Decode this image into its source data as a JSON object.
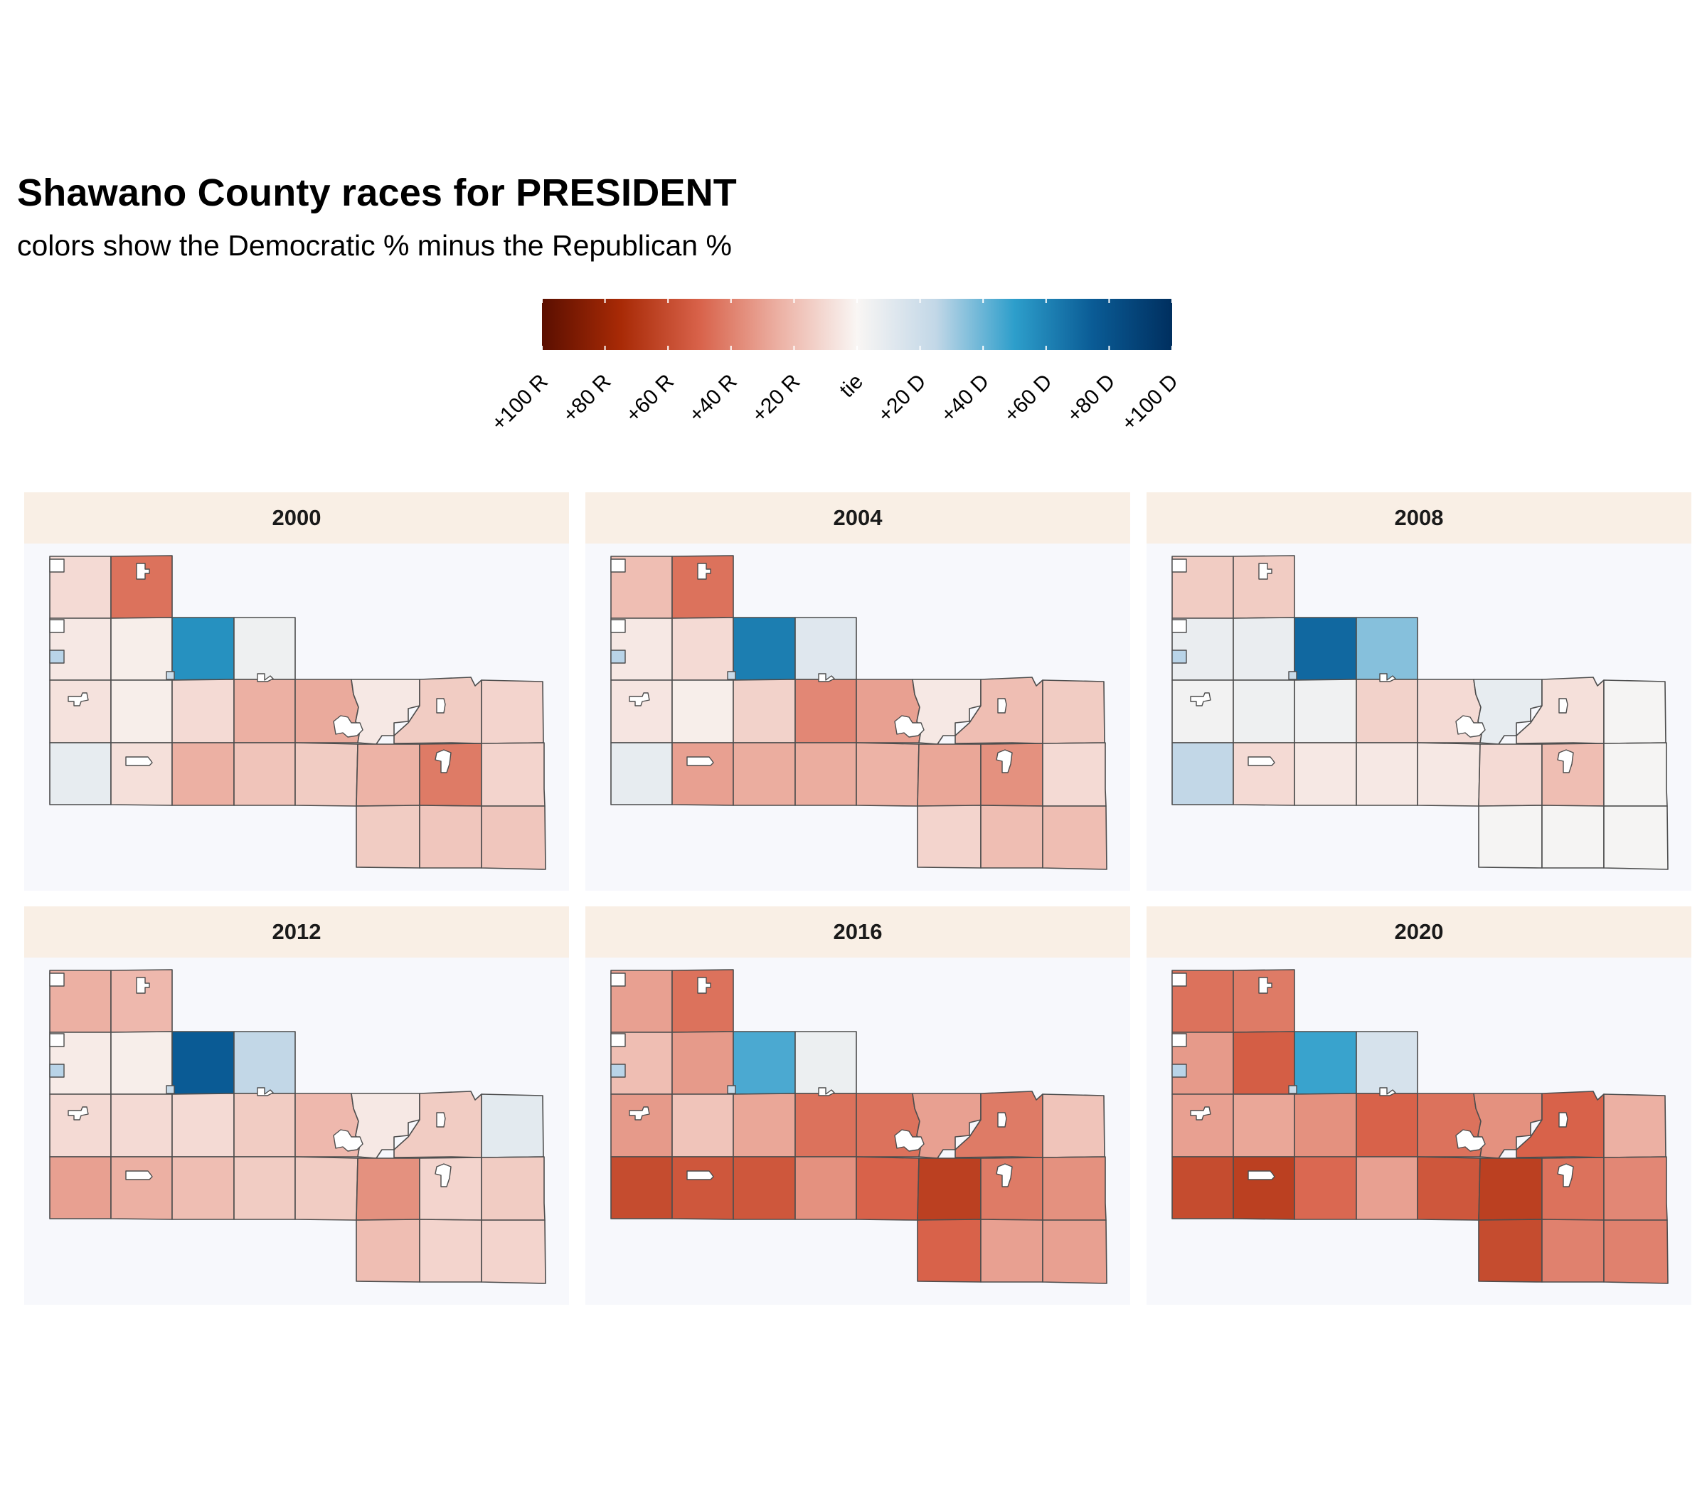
{
  "title": "Shawano County races for PRESIDENT",
  "subtitle": "colors show the Democratic % minus the Republican %",
  "legend": {
    "scale_min": -100,
    "scale_max": 100,
    "ticks": [
      "+100 R",
      "+80 R",
      "+60 R",
      "+40 R",
      "+20 R",
      "tie",
      "+20 D",
      "+40 D",
      "+60 D",
      "+80 D",
      "+100 D"
    ],
    "gradient_colors": [
      "#5b0f00",
      "#a82a06",
      "#d8624a",
      "#ecb0a3",
      "#f9f6f4",
      "#c2d7e7",
      "#2d9ecb",
      "#0a5b95",
      "#002f5f"
    ]
  },
  "chart_data": {
    "type": "choropleth",
    "value_meaning": "Democratic % minus Republican % (negative = Republican margin)",
    "panels": [
      {
        "year": "2000",
        "cells": [
          -10,
          -45,
          -5,
          -3,
          55,
          5,
          -7,
          -3,
          -10,
          -25,
          -27,
          -5,
          -15,
          -12,
          8,
          -8,
          -25,
          -18,
          -15,
          -24,
          -42,
          -12,
          -15,
          -17
        ]
      },
      {
        "year": "2004",
        "cells": [
          -20,
          -45,
          -5,
          -10,
          62,
          12,
          -6,
          -3,
          -13,
          -38,
          -30,
          -5,
          -20,
          -15,
          8,
          -30,
          -26,
          -26,
          -24,
          -28,
          -35,
          -10,
          -12,
          -20
        ]
      },
      {
        "year": "2008",
        "cells": [
          -15,
          -15,
          7,
          7,
          70,
          35,
          3,
          5,
          4,
          -13,
          -10,
          8,
          -8,
          2,
          25,
          -10,
          -5,
          -5,
          -5,
          -10,
          -20,
          2,
          2,
          2
        ]
      },
      {
        "year": "2012",
        "cells": [
          -25,
          -22,
          -4,
          -3,
          75,
          25,
          -10,
          -10,
          -10,
          -15,
          -22,
          -5,
          -15,
          10,
          -30,
          -25,
          -20,
          -15,
          -15,
          -35,
          -12,
          -15,
          -20,
          -12
        ]
      },
      {
        "year": "2016",
        "cells": [
          -30,
          -45,
          -20,
          -32,
          45,
          6,
          -32,
          -18,
          -28,
          -45,
          -45,
          -30,
          -42,
          -18,
          -60,
          -55,
          -55,
          -35,
          -50,
          -65,
          -42,
          -35,
          -50,
          -30
        ]
      },
      {
        "year": "2020",
        "cells": [
          -45,
          -42,
          -32,
          -52,
          48,
          16,
          -30,
          -28,
          -35,
          -50,
          -45,
          -35,
          -50,
          -25,
          -60,
          -65,
          -48,
          -30,
          -55,
          -65,
          -45,
          -38,
          -60,
          -40
        ]
      }
    ]
  },
  "panels": [
    {
      "label": "2000"
    },
    {
      "label": "2004"
    },
    {
      "label": "2008"
    },
    {
      "label": "2012"
    },
    {
      "label": "2016"
    },
    {
      "label": "2020"
    }
  ]
}
